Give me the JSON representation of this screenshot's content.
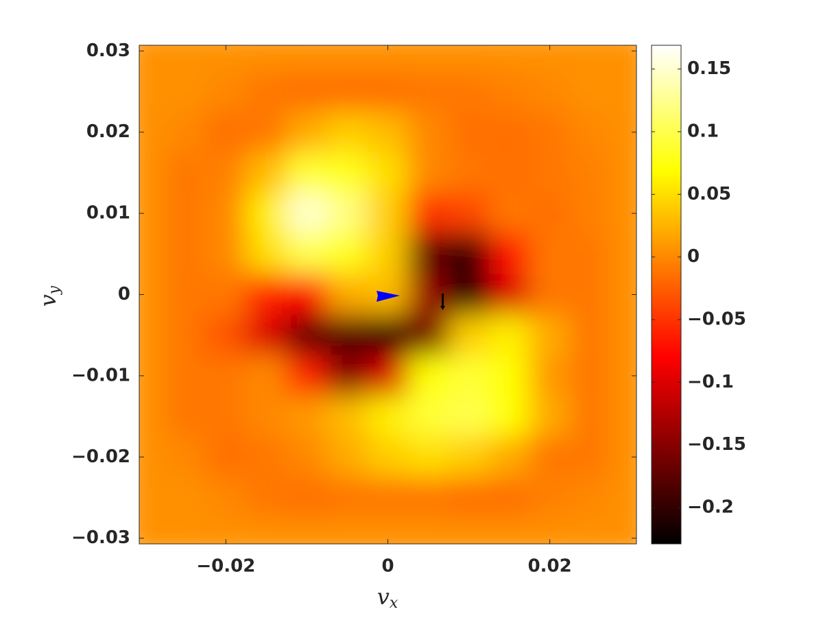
{
  "chart_data": {
    "type": "heatmap",
    "colormap": "hot",
    "xlabel": {
      "symbol": "v",
      "subscript": "x"
    },
    "ylabel": {
      "symbol": "v",
      "subscript": "y"
    },
    "x": [
      -0.03,
      -0.025,
      -0.02,
      -0.015,
      -0.01,
      -0.005,
      0,
      0.005,
      0.01,
      0.015,
      0.02,
      0.025,
      0.03
    ],
    "y": [
      0.03,
      0.025,
      0.02,
      0.015,
      0.01,
      0.005,
      0,
      -0.005,
      -0.01,
      -0.015,
      -0.02,
      -0.025,
      -0.03
    ],
    "z": [
      [
        0.005,
        0.005,
        0.005,
        0.005,
        0.005,
        0.005,
        0.005,
        0.005,
        0.005,
        0.005,
        0.005,
        0.005,
        0.005
      ],
      [
        0.005,
        0.005,
        0.0,
        -0.01,
        -0.015,
        -0.015,
        -0.015,
        -0.01,
        -0.01,
        -0.005,
        0.0,
        0.005,
        0.005
      ],
      [
        0.005,
        0.0,
        -0.015,
        -0.01,
        0.02,
        0.04,
        0.03,
        0.0,
        -0.015,
        -0.015,
        -0.01,
        0.0,
        0.005
      ],
      [
        0.005,
        -0.01,
        -0.005,
        0.03,
        0.09,
        0.08,
        0.05,
        0.0,
        -0.01,
        -0.015,
        -0.01,
        -0.005,
        0.005
      ],
      [
        0.005,
        -0.01,
        0.0,
        0.06,
        0.15,
        0.12,
        0.04,
        -0.05,
        -0.04,
        -0.01,
        -0.015,
        -0.005,
        0.005
      ],
      [
        0.005,
        -0.01,
        0.0,
        0.05,
        0.1,
        0.08,
        0.04,
        -0.17,
        -0.2,
        -0.07,
        -0.01,
        -0.01,
        0.005
      ],
      [
        0.005,
        -0.01,
        -0.01,
        -0.06,
        -0.08,
        0.02,
        0.03,
        -0.14,
        -0.21,
        -0.1,
        -0.01,
        -0.01,
        0.005
      ],
      [
        0.005,
        -0.01,
        -0.03,
        -0.1,
        -0.17,
        -0.18,
        -0.2,
        -0.16,
        0.04,
        0.06,
        0.02,
        -0.01,
        0.005
      ],
      [
        0.005,
        -0.01,
        -0.01,
        0.0,
        -0.06,
        -0.15,
        -0.1,
        0.07,
        0.09,
        0.07,
        0.01,
        -0.01,
        0.005
      ],
      [
        0.005,
        -0.01,
        -0.01,
        0.0,
        0.01,
        0.03,
        0.06,
        0.09,
        0.1,
        0.07,
        0.02,
        -0.01,
        0.005
      ],
      [
        0.005,
        0.0,
        -0.015,
        -0.01,
        0.0,
        0.02,
        0.04,
        0.05,
        0.04,
        0.02,
        -0.01,
        -0.01,
        0.005
      ],
      [
        0.005,
        0.005,
        0.0,
        -0.01,
        -0.015,
        -0.01,
        -0.01,
        -0.01,
        -0.015,
        -0.015,
        -0.005,
        0.0,
        0.005
      ],
      [
        0.005,
        0.005,
        0.005,
        0.005,
        0.005,
        0.005,
        0.005,
        0.005,
        0.005,
        0.005,
        0.005,
        0.005,
        0.005
      ]
    ],
    "xlim": [
      -0.0307,
      0.0307
    ],
    "ylim": [
      -0.0307,
      0.0307
    ],
    "xticks": [
      {
        "value": -0.02,
        "label": "−0.02"
      },
      0,
      0.02
    ],
    "yticks": [
      {
        "value": -0.03,
        "label": "−0.03"
      },
      {
        "value": -0.02,
        "label": "−0.02"
      },
      {
        "value": -0.01,
        "label": "−0.01"
      },
      0,
      0.01,
      0.02,
      0.03
    ],
    "clim": [
      -0.229,
      0.169
    ],
    "cticks": [
      {
        "value": -0.2,
        "label": "−0.2"
      },
      {
        "value": -0.15,
        "label": "−0.15"
      },
      {
        "value": -0.1,
        "label": "−0.1"
      },
      {
        "value": -0.05,
        "label": "−0.05"
      },
      0,
      0.05,
      0.1,
      0.15
    ]
  }
}
